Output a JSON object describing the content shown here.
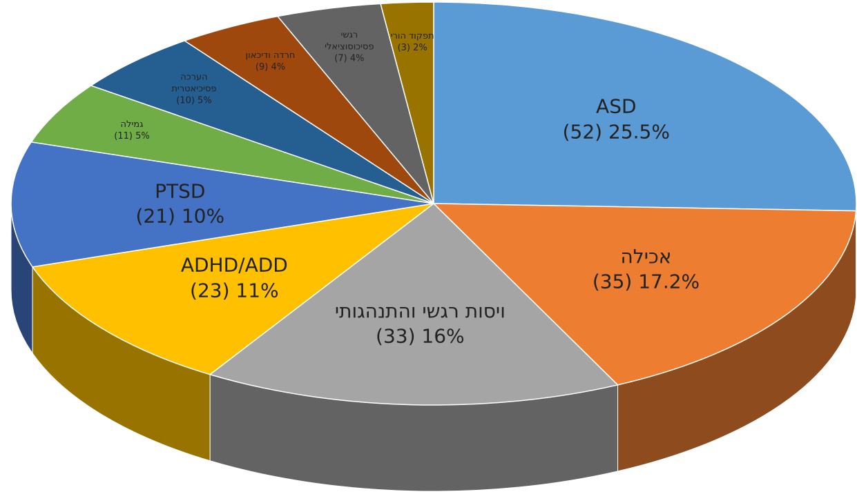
{
  "chart_data": {
    "type": "pie3d",
    "categories": [
      "ASD",
      "אכילה",
      "ויסות רגשי והתנהגותי",
      "ADHD/ADD",
      "PTSD",
      "גמילה",
      "הערכה פסיכיאטרית",
      "חרדה ודיכאון",
      "רגשי פסיכוסוציאלי",
      "תפקוד הורי"
    ],
    "values": [
      25.5,
      17.2,
      16,
      11,
      10,
      5,
      5,
      4,
      4,
      2
    ],
    "counts": [
      52,
      35,
      33,
      23,
      21,
      11,
      10,
      9,
      7,
      3
    ],
    "value_labels": [
      "(52) 25.5%",
      "(35) 17.2%",
      "(33) 16%",
      "(23) 11%",
      "(21) 10%",
      "(11) 5%",
      "(10) 5%",
      "(9) 4%",
      "(7) 4%",
      "(3) 2%"
    ],
    "colors": [
      "#5b9bd5",
      "#ed7d31",
      "#a5a5a5",
      "#ffc000",
      "#4472c4",
      "#70ad47",
      "#255e91",
      "#9e480e",
      "#636363",
      "#997300"
    ]
  }
}
